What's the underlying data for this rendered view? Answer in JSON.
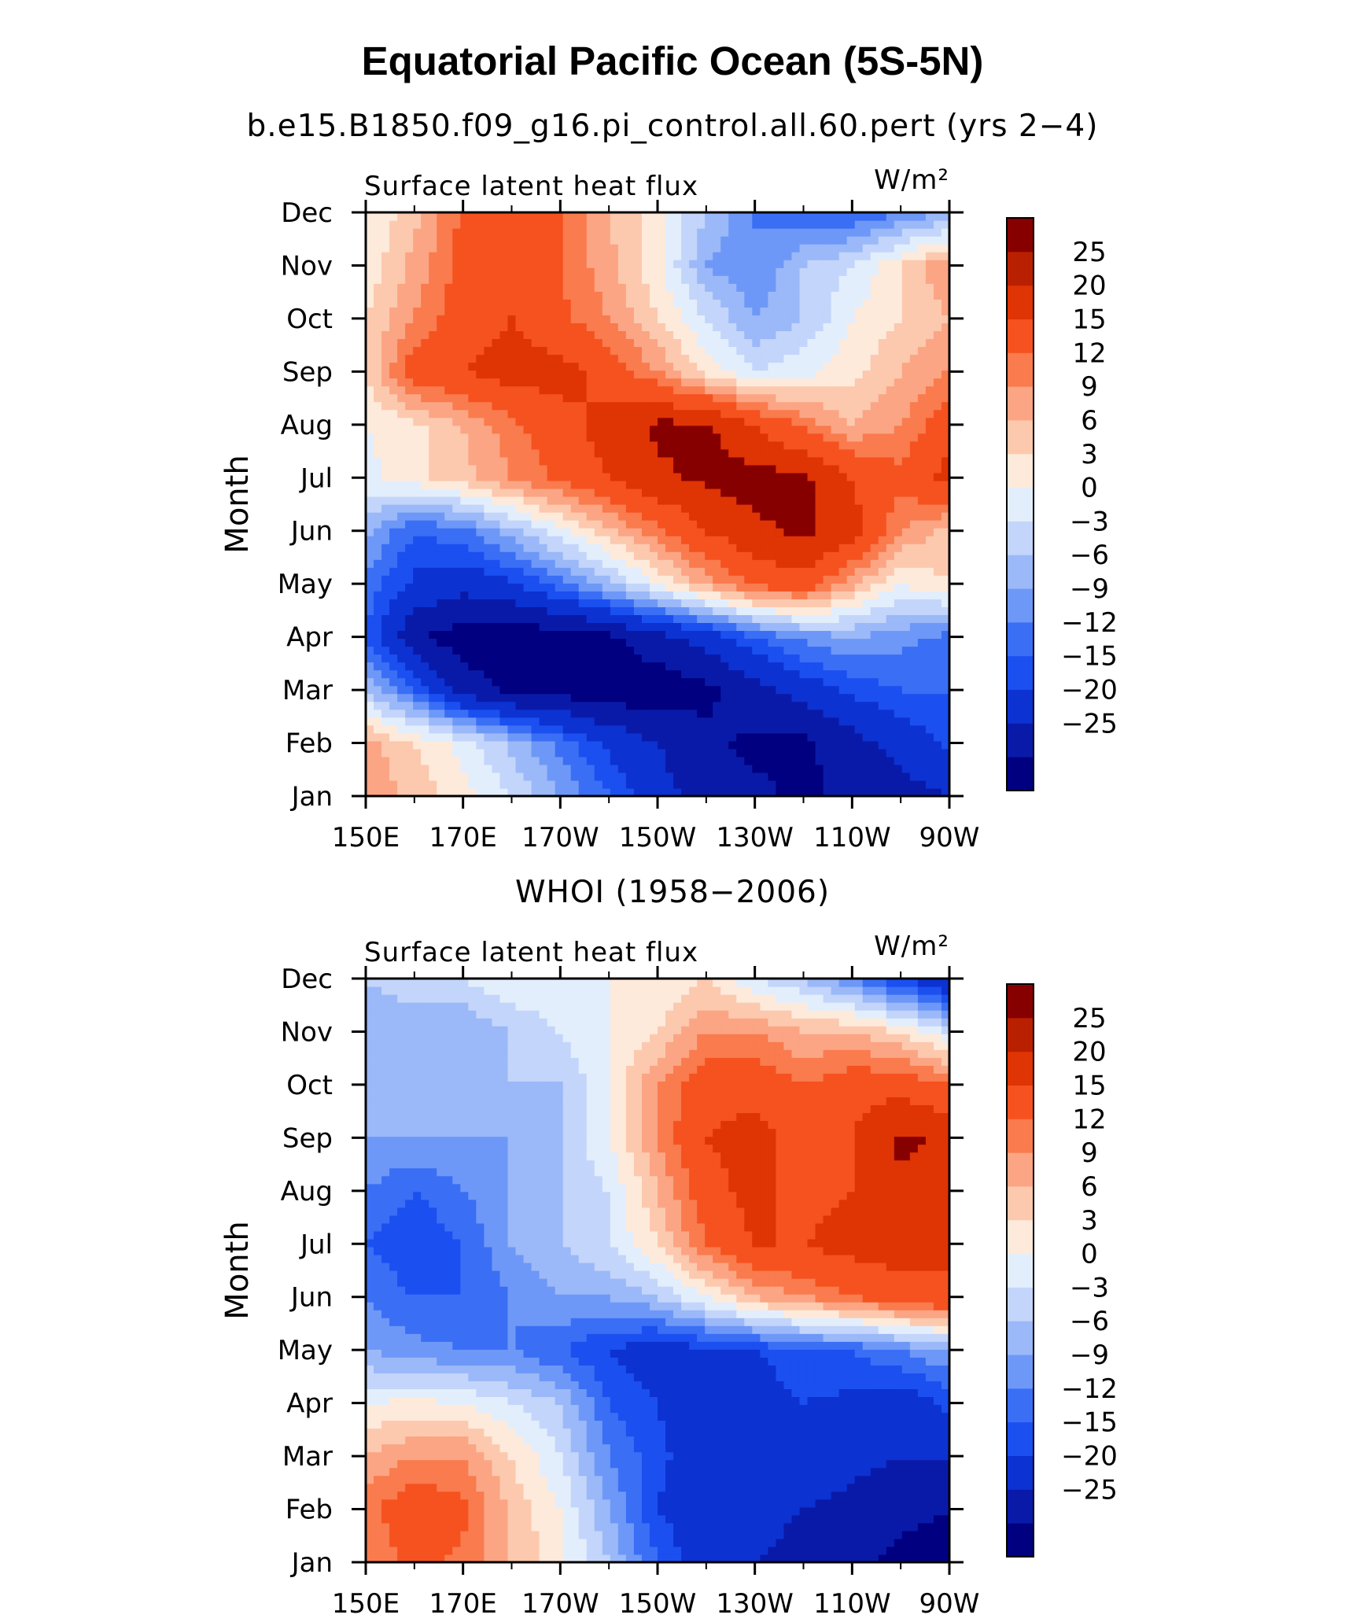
{
  "header": {
    "title": "Equatorial Pacific Ocean (5S-5N)"
  },
  "colors": {
    "levels": [
      "#000080",
      "#0a1aa8",
      "#0d32d2",
      "#1b4ff0",
      "#3a6ef5",
      "#6e98f7",
      "#9bb8f8",
      "#c3d5fa",
      "#e3eefc",
      "#fdeadb",
      "#fcc9ae",
      "#fba584",
      "#f97b4e",
      "#f5521f",
      "#df3404",
      "#b92002",
      "#870000"
    ]
  },
  "chart_data": [
    {
      "type": "heatmap",
      "title": "b.e15.B1850.f09_g16.pi_control.all.60.pert (yrs 2−4)",
      "left_label": "Surface latent heat flux",
      "units": "W/m²",
      "ylabel": "Month",
      "xlabel": "",
      "x_ticks": [
        "150E",
        "170E",
        "170W",
        "150W",
        "130W",
        "110W",
        "90W"
      ],
      "y_ticks": [
        "Jan",
        "Feb",
        "Mar",
        "Apr",
        "May",
        "Jun",
        "Jul",
        "Aug",
        "Sep",
        "Oct",
        "Nov",
        "Dec"
      ],
      "colorbar_labels": [
        "25",
        "20",
        "15",
        "12",
        "9",
        "6",
        "3",
        "0",
        "−3",
        "−6",
        "−9",
        "−12",
        "−15",
        "−20",
        "−25"
      ],
      "x": [
        150,
        160,
        170,
        180,
        190,
        200,
        210,
        220,
        230,
        240,
        250,
        260,
        270
      ],
      "y": [
        1,
        2,
        3,
        4,
        5,
        6,
        7,
        8,
        9,
        10,
        11,
        12
      ],
      "z": [
        [
          12,
          8,
          4,
          0,
          -6,
          -12,
          -18,
          -22,
          -24,
          -26,
          -24,
          -22,
          -20
        ],
        [
          10,
          6,
          2,
          -4,
          -10,
          -16,
          -20,
          -24,
          -26,
          -26,
          -22,
          -18,
          -14
        ],
        [
          -3,
          -12,
          -22,
          -26,
          -27,
          -28,
          -28,
          -26,
          -22,
          -18,
          -14,
          -12,
          -12
        ],
        [
          -12,
          -24,
          -28,
          -28,
          -28,
          -26,
          -22,
          -18,
          -12,
          -8,
          -6,
          -8,
          -10
        ],
        [
          -10,
          -16,
          -18,
          -16,
          -10,
          -4,
          3,
          10,
          16,
          18,
          10,
          3,
          6
        ],
        [
          -5,
          -12,
          -10,
          -4,
          2,
          8,
          14,
          20,
          24,
          26,
          22,
          12,
          8
        ],
        [
          2,
          5,
          8,
          12,
          16,
          20,
          24,
          26,
          27,
          26,
          20,
          16,
          22
        ],
        [
          3,
          5,
          9,
          14,
          18,
          22,
          26,
          26,
          20,
          14,
          9,
          12,
          18
        ],
        [
          6,
          18,
          20,
          22,
          22,
          18,
          12,
          5,
          0,
          2,
          5,
          9,
          12
        ],
        [
          6,
          12,
          18,
          20,
          16,
          12,
          6,
          0,
          -6,
          -3,
          3,
          6,
          9
        ],
        [
          4,
          10,
          16,
          18,
          15,
          10,
          4,
          -6,
          -9,
          -3,
          0,
          6,
          12
        ],
        [
          3,
          8,
          16,
          18,
          16,
          9,
          4,
          -3,
          -9,
          -12,
          -12,
          -9,
          -6
        ]
      ]
    },
    {
      "type": "heatmap",
      "title": "WHOI (1958−2006)",
      "left_label": "Surface latent heat flux",
      "units": "W/m²",
      "ylabel": "Month",
      "xlabel": "",
      "x_ticks": [
        "150E",
        "170E",
        "170W",
        "150W",
        "130W",
        "110W",
        "90W"
      ],
      "y_ticks": [
        "Jan",
        "Feb",
        "Mar",
        "Apr",
        "May",
        "Jun",
        "Jul",
        "Aug",
        "Sep",
        "Oct",
        "Nov",
        "Dec"
      ],
      "colorbar_labels": [
        "25",
        "20",
        "15",
        "12",
        "9",
        "6",
        "3",
        "0",
        "−3",
        "−6",
        "−9",
        "−12",
        "−15",
        "−20",
        "−25"
      ],
      "x": [
        150,
        160,
        170,
        180,
        190,
        200,
        210,
        220,
        230,
        240,
        250,
        260,
        270
      ],
      "y": [
        1,
        2,
        3,
        4,
        5,
        6,
        7,
        8,
        9,
        10,
        11,
        12
      ],
      "z": [
        [
          12,
          16,
          14,
          9,
          4,
          -3,
          -12,
          -18,
          -20,
          -22,
          -24,
          -26,
          -27
        ],
        [
          14,
          18,
          16,
          8,
          3,
          -6,
          -15,
          -18,
          -18,
          -20,
          -22,
          -24,
          -25
        ],
        [
          9,
          12,
          12,
          6,
          0,
          -9,
          -14,
          -18,
          -18,
          -16,
          -18,
          -20,
          -20
        ],
        [
          3,
          4,
          3,
          0,
          -3,
          -12,
          -15,
          -20,
          -18,
          -15,
          -16,
          -18,
          -14
        ],
        [
          -6,
          -8,
          -9,
          -9,
          -12,
          -15,
          -18,
          -16,
          -15,
          -12,
          -12,
          -9,
          -6
        ],
        [
          -9,
          -12,
          -12,
          -9,
          -6,
          -6,
          -3,
          3,
          9,
          12,
          15,
          18,
          20
        ],
        [
          -12,
          -15,
          -12,
          -6,
          -3,
          0,
          6,
          15,
          20,
          20,
          22,
          22,
          20
        ],
        [
          -9,
          -12,
          -9,
          -6,
          -3,
          0,
          9,
          18,
          22,
          18,
          20,
          24,
          24
        ],
        [
          -6,
          -6,
          -6,
          -6,
          -3,
          3,
          12,
          20,
          22,
          18,
          20,
          26,
          24
        ],
        [
          -3,
          -3,
          -6,
          -3,
          -3,
          3,
          12,
          18,
          18,
          15,
          18,
          18,
          15
        ],
        [
          -6,
          -6,
          -6,
          -3,
          0,
          3,
          6,
          12,
          12,
          9,
          9,
          6,
          0
        ],
        [
          -3,
          0,
          0,
          3,
          3,
          3,
          3,
          6,
          0,
          -3,
          -9,
          -15,
          -20
        ]
      ]
    }
  ]
}
